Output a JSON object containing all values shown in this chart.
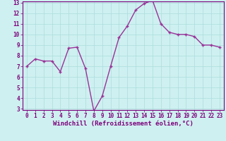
{
  "x": [
    0,
    1,
    2,
    3,
    4,
    5,
    6,
    7,
    8,
    9,
    10,
    11,
    12,
    13,
    14,
    15,
    16,
    17,
    18,
    19,
    20,
    21,
    22,
    23
  ],
  "y": [
    7.0,
    7.7,
    7.5,
    7.5,
    6.5,
    8.7,
    8.8,
    6.8,
    2.8,
    4.2,
    7.0,
    9.7,
    10.8,
    12.3,
    12.9,
    13.2,
    11.0,
    10.2,
    10.0,
    10.0,
    9.8,
    9.0,
    9.0,
    8.8
  ],
  "line_color": "#993399",
  "marker": "+",
  "marker_size": 3,
  "bg_color": "#cff0f0",
  "grid_color": "#aadddd",
  "xlabel": "Windchill (Refroidissement éolien,°C)",
  "ylim": [
    3,
    13
  ],
  "xlim": [
    -0.5,
    23.5
  ],
  "yticks": [
    3,
    4,
    5,
    6,
    7,
    8,
    9,
    10,
    11,
    12,
    13
  ],
  "xticks": [
    0,
    1,
    2,
    3,
    4,
    5,
    6,
    7,
    8,
    9,
    10,
    11,
    12,
    13,
    14,
    15,
    16,
    17,
    18,
    19,
    20,
    21,
    22,
    23
  ],
  "axis_color": "#7b007b",
  "tick_fontsize": 5.5,
  "xlabel_fontsize": 6.5,
  "line_width": 1.0,
  "marker_edge_width": 1.0
}
